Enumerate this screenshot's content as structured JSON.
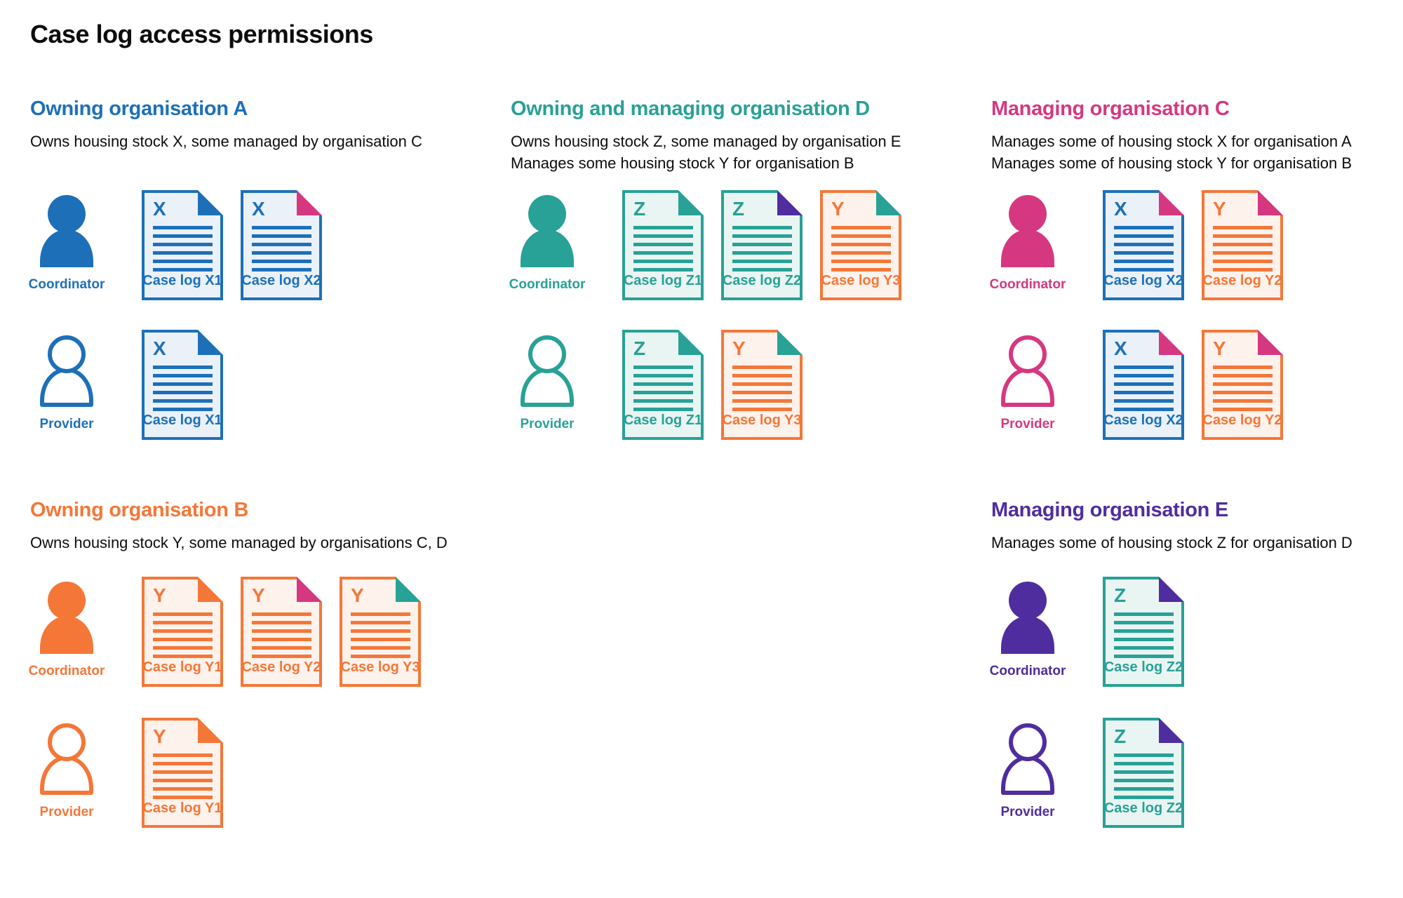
{
  "title": "Case log access permissions",
  "document_lines": 6,
  "colors": {
    "blue": {
      "main": "#1d70b8",
      "tint": "#eaf1f8"
    },
    "teal": {
      "main": "#28a197",
      "tint": "#e9f5f2"
    },
    "orange": {
      "main": "#f47738",
      "tint": "#fdf2ec"
    },
    "pink": {
      "main": "#d53880",
      "tint": "#fbeaf2"
    },
    "purple": {
      "main": "#4f2d9e",
      "tint": "#ece8f6"
    }
  },
  "sections": [
    {
      "id": "owning-organisation-a",
      "title": "Owning organisation A",
      "color": "blue",
      "description": [
        "Owns housing stock X, some managed by organisation C"
      ],
      "rows": [
        {
          "role": "Coordinator",
          "icon": "filled",
          "docs": [
            {
              "letter": "X",
              "color": "blue",
              "fold": "blue",
              "label": "Case log X1"
            },
            {
              "letter": "X",
              "color": "blue",
              "fold": "pink",
              "label": "Case log X2"
            }
          ]
        },
        {
          "role": "Provider",
          "icon": "outline",
          "docs": [
            {
              "letter": "X",
              "color": "blue",
              "fold": "blue",
              "label": "Case log X1"
            }
          ]
        }
      ]
    },
    {
      "id": "owning-and-managing-organisation-d",
      "title": "Owning and managing organisation D",
      "color": "teal",
      "description": [
        "Owns housing stock Z, some managed by organisation E",
        "Manages some housing stock Y for organisation B"
      ],
      "rows": [
        {
          "role": "Coordinator",
          "icon": "filled",
          "docs": [
            {
              "letter": "Z",
              "color": "teal",
              "fold": "teal",
              "label": "Case log Z1"
            },
            {
              "letter": "Z",
              "color": "teal",
              "fold": "purple",
              "label": "Case log Z2"
            },
            {
              "letter": "Y",
              "color": "orange",
              "fold": "teal",
              "label": "Case log Y3"
            }
          ]
        },
        {
          "role": "Provider",
          "icon": "outline",
          "docs": [
            {
              "letter": "Z",
              "color": "teal",
              "fold": "teal",
              "label": "Case log Z1"
            },
            {
              "letter": "Y",
              "color": "orange",
              "fold": "teal",
              "label": "Case log Y3"
            }
          ]
        }
      ]
    },
    {
      "id": "managing-organisation-c",
      "title": "Managing organisation C",
      "color": "pink",
      "description": [
        "Manages some of housing stock X for organisation A",
        "Manages some of housing stock Y for organisation B"
      ],
      "rows": [
        {
          "role": "Coordinator",
          "icon": "filled",
          "docs": [
            {
              "letter": "X",
              "color": "blue",
              "fold": "pink",
              "label": "Case log X2"
            },
            {
              "letter": "Y",
              "color": "orange",
              "fold": "pink",
              "label": "Case log Y2"
            }
          ]
        },
        {
          "role": "Provider",
          "icon": "outline",
          "docs": [
            {
              "letter": "X",
              "color": "blue",
              "fold": "pink",
              "label": "Case log X2"
            },
            {
              "letter": "Y",
              "color": "orange",
              "fold": "pink",
              "label": "Case log Y2"
            }
          ]
        }
      ]
    },
    {
      "id": "owning-organisation-b",
      "title": "Owning organisation B",
      "color": "orange",
      "description": [
        "Owns housing stock Y, some managed by organisations C, D"
      ],
      "rows": [
        {
          "role": "Coordinator",
          "icon": "filled",
          "docs": [
            {
              "letter": "Y",
              "color": "orange",
              "fold": "orange",
              "label": "Case log Y1"
            },
            {
              "letter": "Y",
              "color": "orange",
              "fold": "pink",
              "label": "Case log Y2"
            },
            {
              "letter": "Y",
              "color": "orange",
              "fold": "teal",
              "label": "Case log Y3"
            }
          ]
        },
        {
          "role": "Provider",
          "icon": "outline",
          "docs": [
            {
              "letter": "Y",
              "color": "orange",
              "fold": "orange",
              "label": "Case log Y1"
            }
          ]
        }
      ]
    },
    {
      "id": "managing-organisation-e",
      "title": "Managing organisation E",
      "color": "purple",
      "description": [
        "Manages some of housing stock Z for organisation D"
      ],
      "rows": [
        {
          "role": "Coordinator",
          "icon": "filled",
          "docs": [
            {
              "letter": "Z",
              "color": "teal",
              "fold": "purple",
              "label": "Case log Z2"
            }
          ]
        },
        {
          "role": "Provider",
          "icon": "outline",
          "docs": [
            {
              "letter": "Z",
              "color": "teal",
              "fold": "purple",
              "label": "Case log Z2"
            }
          ]
        }
      ]
    }
  ]
}
